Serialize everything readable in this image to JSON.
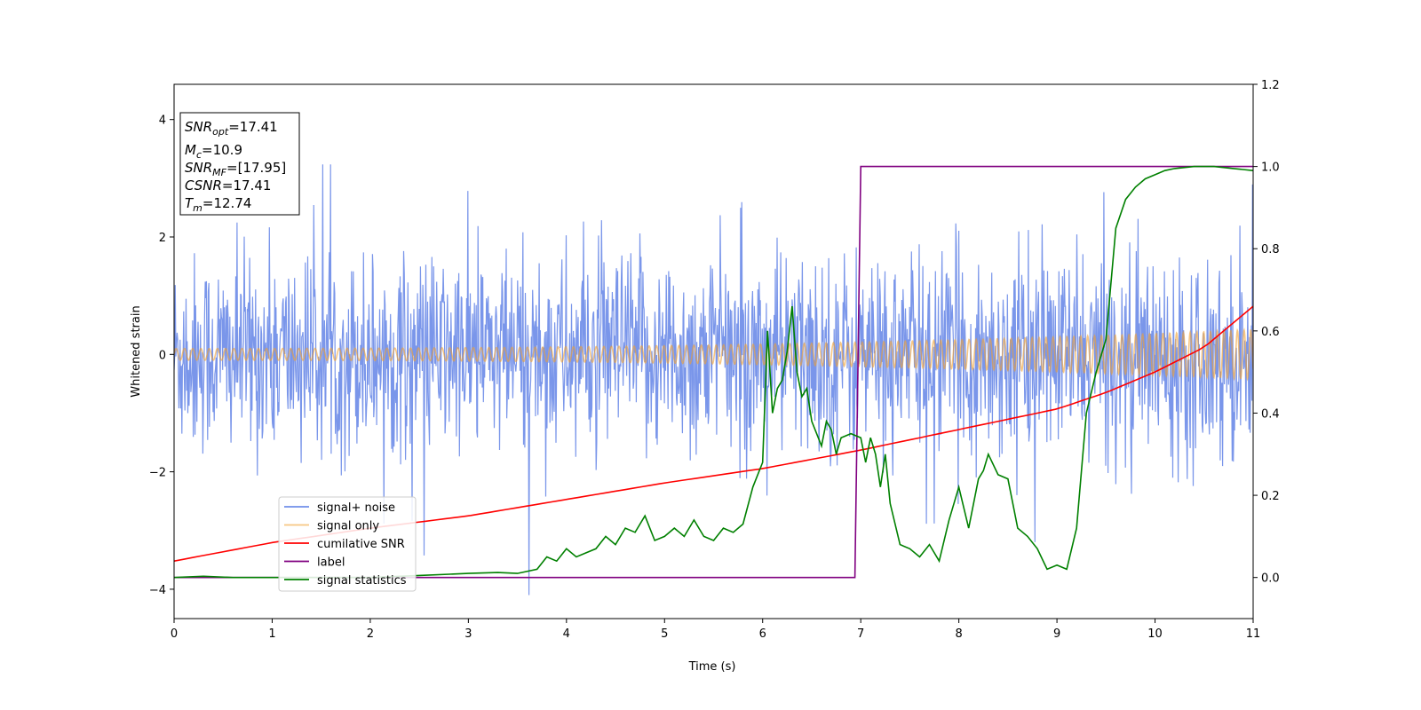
{
  "chart_data": {
    "type": "line",
    "xlabel": "Time (s)",
    "ylabel_left": "Whitened strain",
    "ylabel_right": "",
    "xlim": [
      0,
      11
    ],
    "ylim_left": [
      -4.5,
      4.6
    ],
    "ylim_right": [
      -0.1,
      1.2
    ],
    "x_ticks": [
      "0",
      "1",
      "2",
      "3",
      "4",
      "5",
      "6",
      "7",
      "8",
      "9",
      "10",
      "11"
    ],
    "x_tick_values": [
      0,
      1,
      2,
      3,
      4,
      5,
      6,
      7,
      8,
      9,
      10,
      11
    ],
    "y_left_ticks": [
      "4",
      "2",
      "0",
      "−2",
      "−4"
    ],
    "y_left_tick_values": [
      4,
      2,
      0,
      -2,
      -4
    ],
    "y_right_ticks": [
      "1.2",
      "1.0",
      "0.8",
      "0.6",
      "0.4",
      "0.2",
      "0.0"
    ],
    "y_right_tick_values": [
      1.2,
      1.0,
      0.8,
      0.6,
      0.4,
      0.2,
      0.0
    ],
    "grid": false,
    "legend_position": "lower-left",
    "stats_box": {
      "snr_opt": {
        "base": "SNR",
        "sub": "opt",
        "value": "=17.41"
      },
      "mc": {
        "base": "M",
        "sub": "c",
        "value": "=10.9"
      },
      "snr_mf": {
        "base": "SNR",
        "sub": "MF",
        "value": "=[17.95]"
      },
      "csnr": {
        "base": "CSNR",
        "sub": "",
        "value": "=17.41"
      },
      "tm": {
        "base": "T",
        "sub": "m",
        "value": "=12.74"
      }
    },
    "series": [
      {
        "name": "signal+ noise",
        "axis": "left",
        "color": "#4169e1",
        "kind": "noise",
        "sigma": 0.85,
        "samples": 1800
      },
      {
        "name": "signal only",
        "axis": "left",
        "color": "#f0a030",
        "kind": "chirp",
        "amp_start": 0.1,
        "amp_end": 0.42,
        "cycles": 130
      },
      {
        "name": "cumilative SNR",
        "axis": "right",
        "color": "#ff0000",
        "x": [
          0,
          1,
          2,
          3,
          4,
          5,
          6,
          7,
          8,
          9,
          9.5,
          10,
          10.5,
          11
        ],
        "y": [
          0.04,
          0.085,
          0.12,
          0.15,
          0.19,
          0.23,
          0.265,
          0.31,
          0.36,
          0.41,
          0.45,
          0.5,
          0.56,
          0.66
        ]
      },
      {
        "name": "label",
        "axis": "right",
        "color": "#800080",
        "x": [
          0,
          6.94,
          7.0,
          11
        ],
        "y": [
          0.0,
          0.0,
          1.0,
          1.0
        ]
      },
      {
        "name": "signal statistics",
        "axis": "right",
        "color": "#008000",
        "x": [
          0,
          0.3,
          0.6,
          1.0,
          1.5,
          2.0,
          2.5,
          3.0,
          3.3,
          3.5,
          3.7,
          3.8,
          3.9,
          4.0,
          4.1,
          4.2,
          4.3,
          4.4,
          4.5,
          4.6,
          4.7,
          4.8,
          4.9,
          5.0,
          5.1,
          5.2,
          5.3,
          5.4,
          5.5,
          5.6,
          5.7,
          5.8,
          5.9,
          6.0,
          6.05,
          6.1,
          6.15,
          6.2,
          6.25,
          6.3,
          6.35,
          6.4,
          6.45,
          6.5,
          6.55,
          6.6,
          6.65,
          6.7,
          6.75,
          6.8,
          6.9,
          7.0,
          7.05,
          7.1,
          7.15,
          7.2,
          7.25,
          7.3,
          7.4,
          7.5,
          7.6,
          7.7,
          7.8,
          7.9,
          8.0,
          8.1,
          8.2,
          8.25,
          8.3,
          8.4,
          8.5,
          8.6,
          8.7,
          8.8,
          8.9,
          9.0,
          9.1,
          9.2,
          9.3,
          9.4,
          9.5,
          9.6,
          9.7,
          9.8,
          9.9,
          10.0,
          10.1,
          10.2,
          10.4,
          10.6,
          10.8,
          11.0
        ],
        "y": [
          0.0,
          0.003,
          0.0,
          0.0,
          0.0,
          0.0,
          0.005,
          0.01,
          0.012,
          0.01,
          0.02,
          0.05,
          0.04,
          0.07,
          0.05,
          0.06,
          0.07,
          0.1,
          0.08,
          0.12,
          0.11,
          0.15,
          0.09,
          0.1,
          0.12,
          0.1,
          0.14,
          0.1,
          0.09,
          0.12,
          0.11,
          0.13,
          0.22,
          0.28,
          0.6,
          0.4,
          0.46,
          0.48,
          0.55,
          0.66,
          0.5,
          0.44,
          0.46,
          0.38,
          0.35,
          0.32,
          0.38,
          0.36,
          0.3,
          0.34,
          0.35,
          0.34,
          0.28,
          0.34,
          0.3,
          0.22,
          0.3,
          0.18,
          0.08,
          0.07,
          0.05,
          0.08,
          0.04,
          0.14,
          0.22,
          0.12,
          0.24,
          0.26,
          0.3,
          0.25,
          0.24,
          0.12,
          0.1,
          0.07,
          0.02,
          0.03,
          0.02,
          0.12,
          0.4,
          0.5,
          0.58,
          0.85,
          0.92,
          0.95,
          0.97,
          0.98,
          0.99,
          0.995,
          1.0,
          1.0,
          0.995,
          0.99
        ]
      }
    ]
  }
}
